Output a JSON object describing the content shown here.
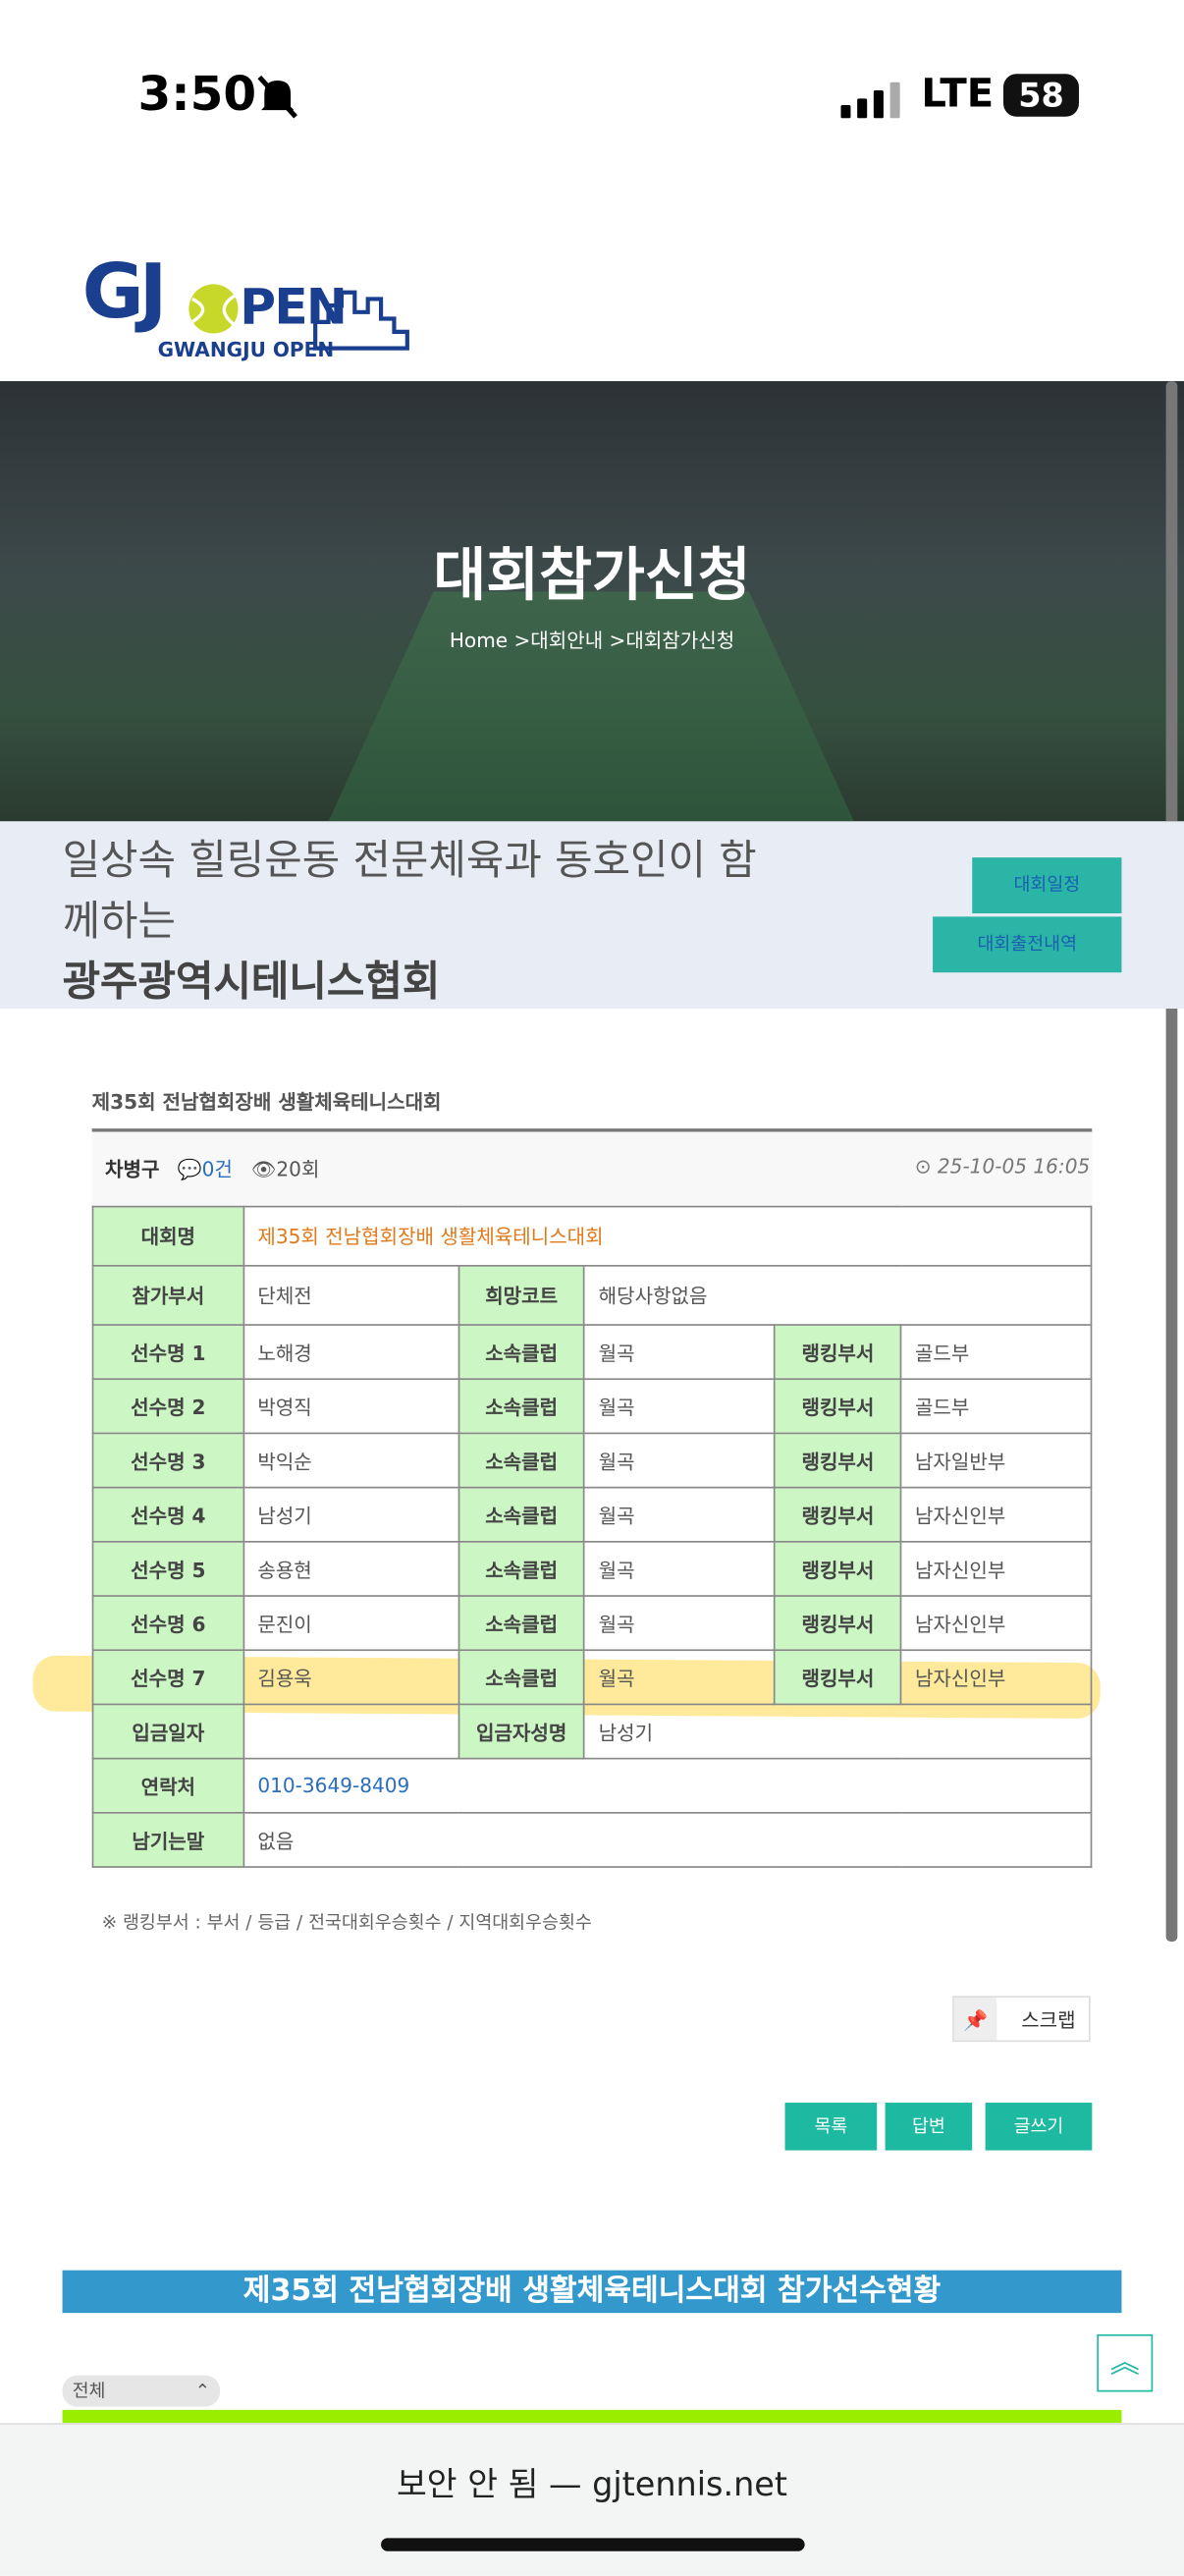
{
  "status_bar": {
    "time": "3:50",
    "network": "LTE",
    "battery": "58"
  },
  "logo": {
    "left": "GJ",
    "right": "PEN",
    "subtitle": "GWANGJU OPEN"
  },
  "hero": {
    "title": "대회참가신청",
    "breadcrumb": "Home >대회안내 >대회참가신청"
  },
  "intro": {
    "line1": "일상속 힐링운동 전문체육과 동호인이 함",
    "line2": "께하는",
    "org": "광주광역시테니스협회",
    "buttons": [
      "대회일정",
      "대회출전내역"
    ]
  },
  "post": {
    "title": "제35회 전남협회장배 생활체육테니스대회",
    "author": "차병구",
    "comments": "0건",
    "views": "20회",
    "date": "25-10-05 16:05"
  },
  "table": {
    "rows": [
      [
        "대회명",
        "제35회 전남협회장배 생활체육테니스대회"
      ],
      [
        "참가부서",
        "단체전",
        "희망코트",
        "해당사항없음"
      ],
      [
        "선수명 1",
        "노해경",
        "소속클럽",
        "월곡",
        "랭킹부서",
        "골드부"
      ],
      [
        "선수명 2",
        "박영직",
        "소속클럽",
        "월곡",
        "랭킹부서",
        "골드부"
      ],
      [
        "선수명 3",
        "박익순",
        "소속클럽",
        "월곡",
        "랭킹부서",
        "남자일반부"
      ],
      [
        "선수명 4",
        "남성기",
        "소속클럽",
        "월곡",
        "랭킹부서",
        "남자신인부"
      ],
      [
        "선수명 5",
        "송용현",
        "소속클럽",
        "월곡",
        "랭킹부서",
        "남자신인부"
      ],
      [
        "선수명 6",
        "문진이",
        "소속클럽",
        "월곡",
        "랭킹부서",
        "남자신인부"
      ],
      [
        "선수명 7",
        "김용욱",
        "소속클럽",
        "월곡",
        "랭킹부서",
        "남자신인부"
      ],
      [
        "입금일자",
        null,
        "입금자성명",
        "남성기"
      ],
      [
        "연락처",
        "010-3649-8409"
      ],
      [
        "남기는말",
        "없음"
      ]
    ]
  },
  "note": "※ 랭킹부서 : 부서 / 등급 / 전국대회우승횟수 / 지역대회우승횟수",
  "actions": {
    "scrap": "스크랩",
    "buttons": [
      "목록",
      "답변",
      "글쓰기"
    ]
  },
  "section_title": "제35회 전남협회장배 생활체육테니스대회 참가선수현황",
  "filter": "전체",
  "browser": {
    "url_bar": "보안 안 됨 — gjtennis.net"
  }
}
